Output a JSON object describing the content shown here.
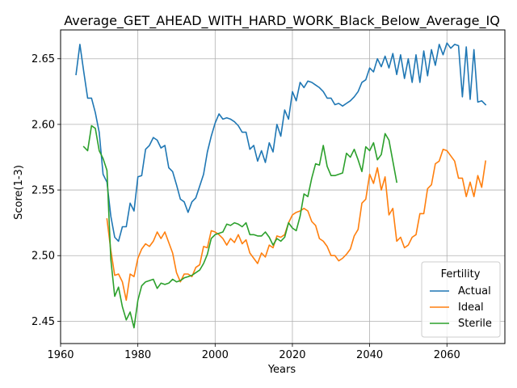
{
  "chart_data": {
    "type": "line",
    "title": "Average_GET_AHEAD_WITH_HARD_WORK_Black_Below_Average_IQ",
    "xlabel": "Years",
    "ylabel": "Score(1-3)",
    "xlim": [
      1960,
      2075
    ],
    "ylim": [
      2.433,
      2.672
    ],
    "xticks": [
      1960,
      1980,
      2000,
      2020,
      2040,
      2060
    ],
    "yticks": [
      2.45,
      2.5,
      2.55,
      2.6,
      2.65
    ],
    "xtick_labels": [
      "1960",
      "1980",
      "2000",
      "2020",
      "2040",
      "2060"
    ],
    "ytick_labels": [
      "2.45",
      "2.50",
      "2.55",
      "2.60",
      "2.65"
    ],
    "grid": true,
    "legend": {
      "title": "Fertility",
      "placement": "lower right"
    },
    "series": [
      {
        "name": "Actual",
        "color": "#1f77b4",
        "x": [
          1964,
          1965,
          1966,
          1967,
          1968,
          1969,
          1970,
          1971,
          1972,
          1973,
          1974,
          1975,
          1976,
          1977,
          1978,
          1979,
          1980,
          1981,
          1982,
          1983,
          1984,
          1985,
          1986,
          1987,
          1988,
          1989,
          1990,
          1991,
          1992,
          1993,
          1994,
          1995,
          1996,
          1997,
          1998,
          1999,
          2000,
          2001,
          2002,
          2003,
          2004,
          2005,
          2006,
          2007,
          2008,
          2009,
          2010,
          2011,
          2012,
          2013,
          2014,
          2015,
          2016,
          2017,
          2018,
          2019,
          2020,
          2021,
          2022,
          2023,
          2024,
          2025,
          2026,
          2027,
          2028,
          2029,
          2030,
          2031,
          2032,
          2033,
          2034,
          2035,
          2036,
          2037,
          2038,
          2039,
          2040,
          2041,
          2042,
          2043,
          2044,
          2045,
          2046,
          2047,
          2048,
          2049,
          2050,
          2051,
          2052,
          2053,
          2054,
          2055,
          2056,
          2057,
          2058,
          2059,
          2060,
          2061,
          2062,
          2063,
          2064,
          2065,
          2066,
          2067,
          2068,
          2069,
          2070
        ],
        "values": [
          2.638,
          2.661,
          2.64,
          2.62,
          2.62,
          2.609,
          2.594,
          2.562,
          2.556,
          2.53,
          2.514,
          2.511,
          2.522,
          2.522,
          2.54,
          2.534,
          2.56,
          2.561,
          2.581,
          2.584,
          2.59,
          2.588,
          2.582,
          2.584,
          2.567,
          2.564,
          2.554,
          2.543,
          2.541,
          2.533,
          2.541,
          2.544,
          2.553,
          2.562,
          2.579,
          2.591,
          2.601,
          2.608,
          2.604,
          2.605,
          2.604,
          2.602,
          2.599,
          2.594,
          2.594,
          2.581,
          2.584,
          2.572,
          2.58,
          2.571,
          2.586,
          2.579,
          2.6,
          2.591,
          2.611,
          2.604,
          2.625,
          2.618,
          2.632,
          2.628,
          2.633,
          2.632,
          2.63,
          2.628,
          2.625,
          2.62,
          2.62,
          2.615,
          2.616,
          2.614,
          2.616,
          2.618,
          2.621,
          2.625,
          2.632,
          2.634,
          2.643,
          2.64,
          2.65,
          2.644,
          2.652,
          2.643,
          2.654,
          2.638,
          2.653,
          2.635,
          2.65,
          2.632,
          2.653,
          2.632,
          2.656,
          2.637,
          2.657,
          2.645,
          2.661,
          2.653,
          2.662,
          2.658,
          2.661,
          2.66,
          2.621,
          2.659,
          2.619,
          2.657,
          2.617,
          2.618,
          2.615
        ]
      },
      {
        "name": "Ideal",
        "color": "#ff7f0e",
        "x": [
          1972,
          1973,
          1974,
          1975,
          1976,
          1977,
          1978,
          1979,
          1980,
          1981,
          1982,
          1983,
          1984,
          1985,
          1986,
          1987,
          1988,
          1989,
          1990,
          1991,
          1992,
          1993,
          1994,
          1995,
          1996,
          1997,
          1998,
          1999,
          2000,
          2001,
          2002,
          2003,
          2004,
          2005,
          2006,
          2007,
          2008,
          2009,
          2010,
          2011,
          2012,
          2013,
          2014,
          2015,
          2016,
          2017,
          2018,
          2019,
          2020,
          2021,
          2022,
          2023,
          2024,
          2025,
          2026,
          2027,
          2028,
          2029,
          2030,
          2031,
          2032,
          2033,
          2034,
          2035,
          2036,
          2037,
          2038,
          2039,
          2040,
          2041,
          2042,
          2043,
          2044,
          2045,
          2046,
          2047,
          2048,
          2049,
          2050,
          2051,
          2052,
          2053,
          2054,
          2055,
          2056,
          2057,
          2058,
          2059,
          2060,
          2061,
          2062,
          2063,
          2064,
          2065,
          2066,
          2067,
          2068,
          2069,
          2070
        ],
        "values": [
          2.528,
          2.504,
          2.485,
          2.486,
          2.48,
          2.466,
          2.486,
          2.484,
          2.498,
          2.505,
          2.509,
          2.507,
          2.511,
          2.518,
          2.513,
          2.518,
          2.51,
          2.502,
          2.487,
          2.48,
          2.486,
          2.486,
          2.484,
          2.491,
          2.493,
          2.507,
          2.506,
          2.519,
          2.518,
          2.516,
          2.513,
          2.508,
          2.513,
          2.51,
          2.516,
          2.509,
          2.512,
          2.502,
          2.498,
          2.494,
          2.502,
          2.499,
          2.508,
          2.506,
          2.515,
          2.514,
          2.516,
          2.525,
          2.531,
          2.533,
          2.534,
          2.536,
          2.534,
          2.526,
          2.523,
          2.513,
          2.511,
          2.507,
          2.5,
          2.5,
          2.496,
          2.498,
          2.501,
          2.505,
          2.515,
          2.52,
          2.54,
          2.543,
          2.562,
          2.555,
          2.567,
          2.55,
          2.56,
          2.531,
          2.536,
          2.511,
          2.514,
          2.506,
          2.508,
          2.514,
          2.516,
          2.532,
          2.532,
          2.551,
          2.554,
          2.57,
          2.572,
          2.581,
          2.58,
          2.576,
          2.572,
          2.559,
          2.559,
          2.545,
          2.556,
          2.545,
          2.561,
          2.552,
          2.572
        ]
      },
      {
        "name": "Sterile",
        "color": "#2ca02c",
        "x": [
          1966,
          1967,
          1968,
          1969,
          1970,
          1971,
          1972,
          1973,
          1974,
          1975,
          1976,
          1977,
          1978,
          1979,
          1980,
          1981,
          1982,
          1983,
          1984,
          1985,
          1986,
          1987,
          1988,
          1989,
          1990,
          1991,
          1992,
          1993,
          1994,
          1995,
          1996,
          1997,
          1998,
          1999,
          2000,
          2001,
          2002,
          2003,
          2004,
          2005,
          2006,
          2007,
          2008,
          2009,
          2010,
          2011,
          2012,
          2013,
          2014,
          2015,
          2016,
          2017,
          2018,
          2019,
          2020,
          2021,
          2022,
          2023,
          2024,
          2025,
          2026,
          2027,
          2028,
          2029,
          2030,
          2031,
          2032,
          2033,
          2034,
          2035,
          2036,
          2037,
          2038,
          2039,
          2040,
          2041,
          2042,
          2043,
          2044,
          2045,
          2046,
          2047
        ],
        "values": [
          2.583,
          2.58,
          2.599,
          2.597,
          2.58,
          2.574,
          2.565,
          2.497,
          2.469,
          2.476,
          2.461,
          2.451,
          2.457,
          2.445,
          2.466,
          2.477,
          2.48,
          2.481,
          2.482,
          2.475,
          2.479,
          2.478,
          2.479,
          2.482,
          2.48,
          2.481,
          2.483,
          2.484,
          2.485,
          2.487,
          2.489,
          2.494,
          2.501,
          2.513,
          2.516,
          2.517,
          2.518,
          2.524,
          2.523,
          2.525,
          2.524,
          2.522,
          2.525,
          2.516,
          2.516,
          2.515,
          2.515,
          2.518,
          2.514,
          2.508,
          2.513,
          2.511,
          2.514,
          2.525,
          2.521,
          2.519,
          2.53,
          2.547,
          2.545,
          2.559,
          2.57,
          2.569,
          2.584,
          2.568,
          2.561,
          2.561,
          2.562,
          2.563,
          2.578,
          2.575,
          2.581,
          2.573,
          2.564,
          2.583,
          2.58,
          2.586,
          2.573,
          2.577,
          2.593,
          2.588,
          2.572,
          2.556
        ]
      }
    ]
  }
}
